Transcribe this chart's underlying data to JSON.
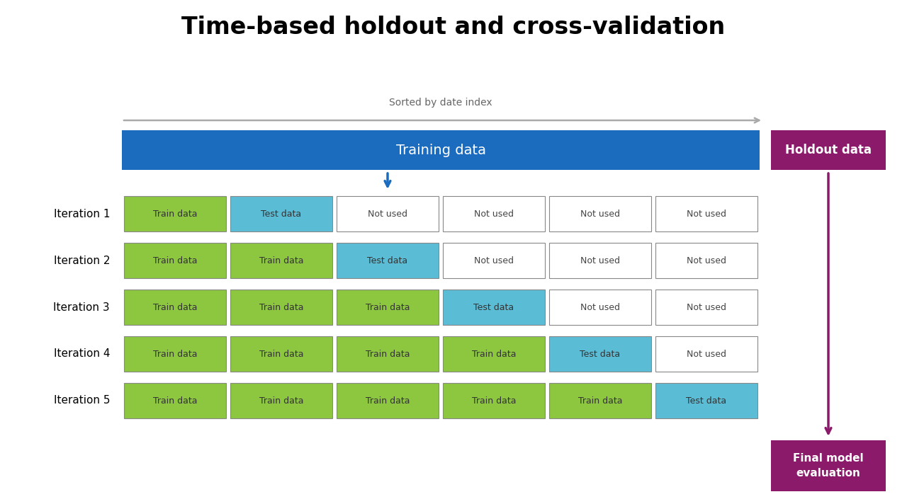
{
  "title": "Time-based holdout and cross-validation",
  "title_fontsize": 24,
  "title_fontweight": "bold",
  "sorted_label": "Sorted by date index",
  "training_label": "Training data",
  "holdout_label": "Holdout data",
  "final_eval_label": "Final model\nevaluation",
  "iteration_labels": [
    "Iteration 1",
    "Iteration 2",
    "Iteration 3",
    "Iteration 4",
    "Iteration 5"
  ],
  "color_train": "#8dc63f",
  "color_test": "#5bbcd6",
  "color_not_used": "#ffffff",
  "color_training_bar": "#1b6bbf",
  "color_holdout": "#8b1a6b",
  "color_final_eval": "#8b1a6b",
  "text_color_white": "#ffffff",
  "text_color_dark": "#333333",
  "grid": [
    [
      "train",
      "test",
      "not_used",
      "not_used",
      "not_used",
      "not_used"
    ],
    [
      "train",
      "train",
      "test",
      "not_used",
      "not_used",
      "not_used"
    ],
    [
      "train",
      "train",
      "train",
      "test",
      "not_used",
      "not_used"
    ],
    [
      "train",
      "train",
      "train",
      "train",
      "test",
      "not_used"
    ],
    [
      "train",
      "train",
      "train",
      "train",
      "train",
      "test"
    ]
  ],
  "cell_labels": {
    "train": "Train data",
    "test": "Test data",
    "not_used": "Not used"
  },
  "figwidth": 12.8,
  "figheight": 7.12,
  "dpi": 100
}
